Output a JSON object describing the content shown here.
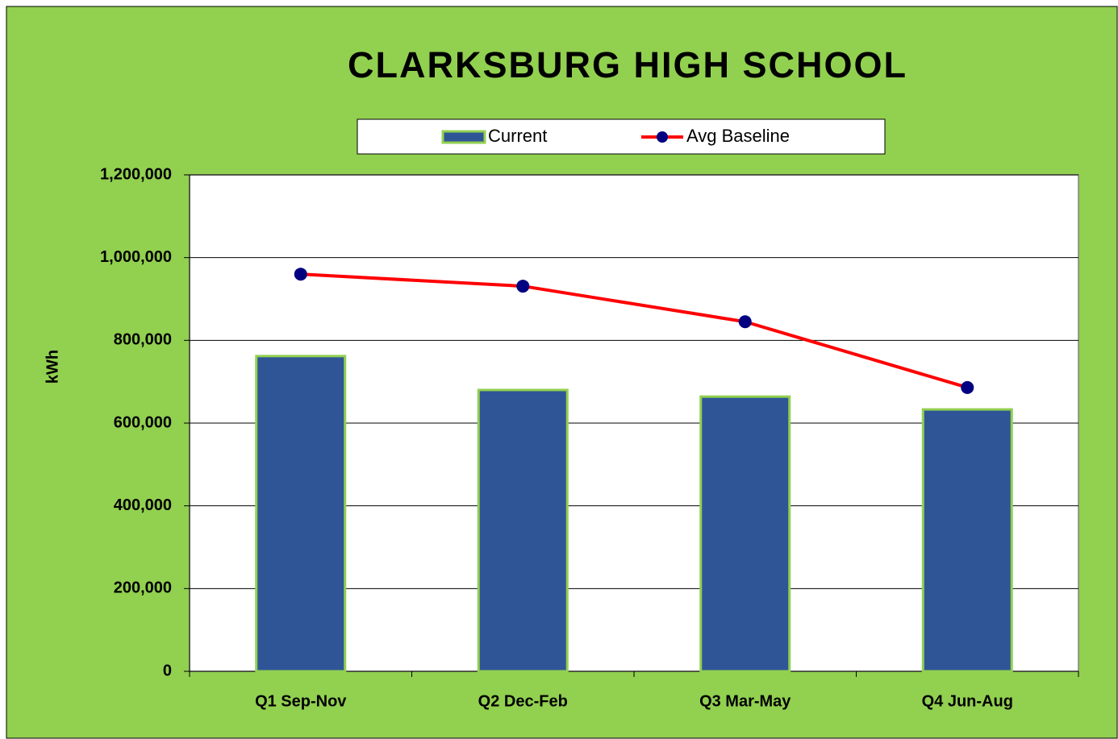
{
  "chart_data": {
    "type": "bar",
    "title": "CLARKSBURG HIGH SCHOOL",
    "y_label": "kWh",
    "categories": [
      "Q1 Sep-Nov",
      "Q2 Dec-Feb",
      "Q3 Mar-May",
      "Q4 Jun-Aug"
    ],
    "series": [
      {
        "name": "Current",
        "type": "bar",
        "color": "#2f5597",
        "values": [
          762000,
          680000,
          664000,
          633000
        ]
      },
      {
        "name": "Avg Baseline",
        "type": "line",
        "color": "#ff0000",
        "marker_color": "#000080",
        "values": [
          960000,
          931000,
          845000,
          686000
        ]
      }
    ],
    "ylim": [
      0,
      1200000
    ],
    "yticks": [
      0,
      {
        "value": 200000,
        "label": "200,000"
      },
      {
        "value": 400000,
        "label": "400,000"
      },
      {
        "value": 600000,
        "label": "600,000"
      },
      {
        "value": 800000,
        "label": "800,000"
      },
      {
        "value": 1000000,
        "label": "1,000,000"
      },
      {
        "value": 1200000,
        "label": "1,200,000"
      }
    ],
    "grid": true,
    "legend": "top"
  }
}
